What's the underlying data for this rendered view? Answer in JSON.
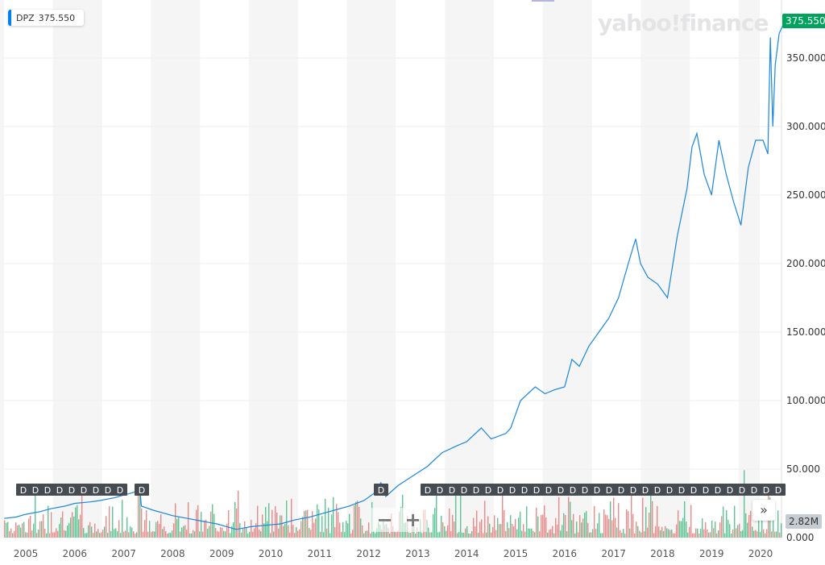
{
  "legend": {
    "symbol": "DPZ",
    "price": "375.550"
  },
  "logo": "yahoo!finance",
  "price_tag": "375.550",
  "volume_tag": "2.82M",
  "controls": {
    "zoom_out": "−",
    "zoom_in": "+",
    "more": "»"
  },
  "dividend_marker": "D",
  "colors": {
    "line": "#1a86e0",
    "up": "#35b87a",
    "down": "#ef6b6b",
    "price_tag": "#00a35b"
  },
  "chart_data": {
    "type": "line",
    "title": "DPZ",
    "xlabel": "",
    "ylabel": "",
    "x_ticks": [
      "2005",
      "2006",
      "2007",
      "2008",
      "2009",
      "2010",
      "2011",
      "2012",
      "2013",
      "2014",
      "2015",
      "2016",
      "2017",
      "2018",
      "2019",
      "2020"
    ],
    "y_ticks": [
      "0.000",
      "50.000",
      "100.000",
      "150.000",
      "200.000",
      "250.000",
      "300.000",
      "350.000"
    ],
    "xlim": [
      2004.56,
      2020.48
    ],
    "ylim": [
      0,
      390
    ],
    "grid": true,
    "series": [
      {
        "name": "DPZ",
        "x": [
          2004.56,
          2004.8,
          2005,
          2005.3,
          2005.5,
          2005.8,
          2006,
          2006.3,
          2006.5,
          2006.8,
          2007,
          2007.2,
          2007.33,
          2007.36,
          2007.6,
          2008,
          2008.3,
          2008.6,
          2008.9,
          2009.1,
          2009.3,
          2009.6,
          2009.9,
          2010.2,
          2010.5,
          2010.8,
          2011,
          2011.3,
          2011.6,
          2011.9,
          2012.1,
          2012.25,
          2012.35,
          2012.6,
          2012.9,
          2013.2,
          2013.5,
          2013.8,
          2014,
          2014.3,
          2014.5,
          2014.8,
          2014.9,
          2015.1,
          2015.4,
          2015.6,
          2015.8,
          2016,
          2016.15,
          2016.3,
          2016.5,
          2016.7,
          2016.9,
          2017.1,
          2017.3,
          2017.45,
          2017.55,
          2017.7,
          2017.9,
          2018.1,
          2018.3,
          2018.5,
          2018.6,
          2018.7,
          2018.85,
          2019,
          2019.15,
          2019.3,
          2019.45,
          2019.6,
          2019.75,
          2019.9,
          2020.05,
          2020.15,
          2020.2,
          2020.25,
          2020.3,
          2020.38,
          2020.48
        ],
        "y": [
          14,
          15,
          17,
          19,
          21,
          23,
          25,
          26,
          27,
          29,
          31,
          33,
          35,
          23,
          20,
          16,
          14,
          12,
          10,
          8,
          6,
          8,
          9,
          10,
          13,
          15,
          17,
          20,
          23,
          27,
          32,
          40,
          30,
          38,
          45,
          52,
          62,
          67,
          70,
          80,
          72,
          76,
          80,
          100,
          110,
          105,
          108,
          110,
          130,
          125,
          140,
          150,
          160,
          175,
          200,
          218,
          200,
          190,
          185,
          175,
          220,
          255,
          285,
          295,
          265,
          250,
          290,
          265,
          245,
          228,
          270,
          290,
          290,
          280,
          365,
          300,
          345,
          368,
          375.55
        ]
      }
    ],
    "volume": {
      "label": "2.82M",
      "ylim_label": "0.000"
    }
  }
}
